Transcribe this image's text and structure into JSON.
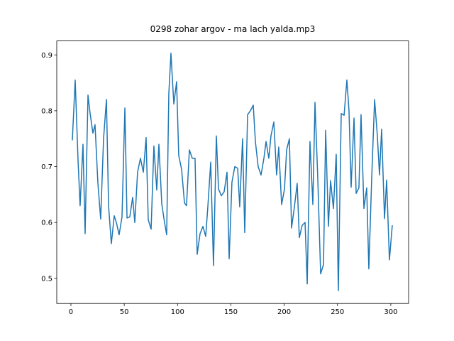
{
  "chart_data": {
    "type": "line",
    "title": "0298 zohar argov - ma lach yalda.mp3",
    "x": [
      1.3,
      4.0,
      6.7,
      8.6,
      11.3,
      13.3,
      16.0,
      18.0,
      20.6,
      22.6,
      25.3,
      27.9,
      30.6,
      33.3,
      35.3,
      37.9,
      40.6,
      42.6,
      45.2,
      47.9,
      50.6,
      52.6,
      55.2,
      57.9,
      59.9,
      62.5,
      65.2,
      67.9,
      70.5,
      72.5,
      75.2,
      77.8,
      80.5,
      82.5,
      85.2,
      87.8,
      89.8,
      91.8,
      93.8,
      96.5,
      99.1,
      101.1,
      103.8,
      106.5,
      108.4,
      111.1,
      113.8,
      116.4,
      118.4,
      121.1,
      123.8,
      126.4,
      128.4,
      131.1,
      133.7,
      136.4,
      138.4,
      141.1,
      143.7,
      146.4,
      148.4,
      151.0,
      153.7,
      156.4,
      158.3,
      161.0,
      163.0,
      165.7,
      168.3,
      171.0,
      173.0,
      175.6,
      178.3,
      181.0,
      183.0,
      185.6,
      187.6,
      190.3,
      192.9,
      194.9,
      197.6,
      200.3,
      202.3,
      204.9,
      206.9,
      209.6,
      212.2,
      214.2,
      216.9,
      219.6,
      221.6,
      224.2,
      226.9,
      228.9,
      231.5,
      234.2,
      236.9,
      238.9,
      241.5,
      243.5,
      246.2,
      248.8,
      250.8,
      253.5,
      256.2,
      258.8,
      260.8,
      262.8,
      265.5,
      267.5,
      270.1,
      272.1,
      274.8,
      277.4,
      279.4,
      282.1,
      284.8,
      287.4,
      289.4,
      291.4,
      294.1,
      296.1,
      298.7,
      301.4
    ],
    "series": [
      {
        "color": "#1f77b4",
        "values": [
          0.747,
          0.855,
          0.71,
          0.63,
          0.74,
          0.58,
          0.828,
          0.795,
          0.76,
          0.775,
          0.67,
          0.606,
          0.75,
          0.82,
          0.63,
          0.562,
          0.612,
          0.6,
          0.578,
          0.61,
          0.805,
          0.608,
          0.61,
          0.645,
          0.6,
          0.69,
          0.715,
          0.69,
          0.752,
          0.605,
          0.588,
          0.737,
          0.658,
          0.74,
          0.633,
          0.6,
          0.578,
          0.83,
          0.903,
          0.812,
          0.852,
          0.72,
          0.695,
          0.635,
          0.63,
          0.73,
          0.715,
          0.715,
          0.543,
          0.58,
          0.593,
          0.575,
          0.628,
          0.708,
          0.523,
          0.755,
          0.66,
          0.648,
          0.655,
          0.69,
          0.535,
          0.672,
          0.7,
          0.697,
          0.628,
          0.75,
          0.582,
          0.793,
          0.8,
          0.81,
          0.745,
          0.7,
          0.685,
          0.715,
          0.745,
          0.715,
          0.755,
          0.78,
          0.685,
          0.735,
          0.632,
          0.66,
          0.73,
          0.75,
          0.59,
          0.628,
          0.67,
          0.573,
          0.595,
          0.6,
          0.49,
          0.745,
          0.632,
          0.815,
          0.68,
          0.508,
          0.525,
          0.765,
          0.593,
          0.675,
          0.625,
          0.722,
          0.478,
          0.795,
          0.792,
          0.855,
          0.8,
          0.663,
          0.787,
          0.652,
          0.662,
          0.793,
          0.625,
          0.662,
          0.517,
          0.68,
          0.82,
          0.755,
          0.685,
          0.767,
          0.607,
          0.676,
          0.533,
          0.595
        ]
      }
    ],
    "xlim": [
      -13.3,
      316.7
    ],
    "ylim": [
      0.455,
      0.925
    ],
    "xticks": [
      0,
      50,
      100,
      150,
      200,
      250,
      300
    ],
    "yticks": [
      0.5,
      0.6,
      0.7,
      0.8,
      0.9
    ]
  }
}
